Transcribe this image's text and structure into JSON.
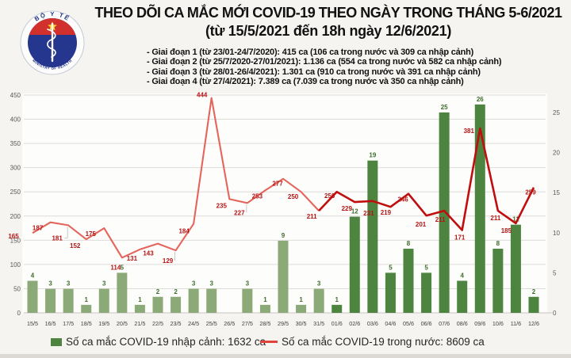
{
  "header": {
    "logo": {
      "top_text": "BỘ Y TẾ",
      "bottom_text": "MINISTRY OF HEALTH"
    },
    "title_line1": "THEO DÕI CA MẮC MỚI COVID-19 THEO NGÀY TRONG THÁNG 5-6/2021",
    "title_line2": "(từ 15/5/2021 đến 18h ngày 12/6/2021)",
    "bullets": [
      "- Giai đoạn 1 (từ 23/01-24/7/2020): 415 ca (106 ca trong nước và 309 ca nhập cảnh)",
      "- Giai đoạn 2 (từ 25/7/2020-27/01/2021): 1.136 ca (554 ca trong nước và 582 ca nhập cảnh)",
      "- Giai đoạn 3 (từ 28/01-26/4/2021): 1.301 ca (910 ca trong nước và 391 ca nhập cảnh)",
      "- Giai đoạn 4 (từ 27/4/2021): 7.389 ca (7.039 ca trong nước và 350 ca nhập cảnh)"
    ]
  },
  "chart_data": {
    "type": "bar",
    "combo": "bar+line",
    "categories": [
      "15/5",
      "16/5",
      "17/5",
      "18/5",
      "19/5",
      "20/5",
      "21/5",
      "22/5",
      "23/5",
      "24/5",
      "25/5",
      "26/5",
      "27/5",
      "28/5",
      "29/5",
      "30/5",
      "31/5",
      "01/6",
      "02/6",
      "03/6",
      "04/6",
      "05/6",
      "06/6",
      "07/6",
      "08/6",
      "09/6",
      "10/6",
      "11/6",
      "12/6"
    ],
    "series": [
      {
        "name": "Số ca mắc COVID-19 nhập cảnh",
        "type": "bar",
        "axis": "right",
        "values": [
          4,
          3,
          3,
          1,
          3,
          5,
          1,
          2,
          2,
          3,
          3,
          0,
          3,
          1,
          9,
          1,
          3,
          1,
          12,
          19,
          5,
          8,
          5,
          25,
          4,
          26,
          8,
          11,
          2
        ]
      },
      {
        "name": "Số ca mắc COVID-19 trong nước",
        "type": "line",
        "axis": "left",
        "values": [
          165,
          187,
          181,
          152,
          175,
          114,
          131,
          143,
          129,
          184,
          444,
          235,
          227,
          253,
          277,
          250,
          211,
          250,
          229,
          231,
          219,
          246,
          201,
          211,
          171,
          381,
          211,
          185,
          259
        ]
      }
    ],
    "left_axis": {
      "ticks": [
        0,
        50,
        100,
        150,
        200,
        250,
        300,
        350,
        400,
        450
      ],
      "ylim": [
        0,
        450
      ]
    },
    "right_axis": {
      "ticks": [
        0,
        5,
        10,
        15,
        20,
        25
      ],
      "ylim": [
        0,
        25
      ]
    },
    "may_june_split_index": 17,
    "grid": "horizontal",
    "legend_position": "bottom",
    "colors": {
      "bar_may": "#8caa77",
      "bar_june": "#4c8440",
      "line_may": "#e4655c",
      "line_june": "#c00d0d",
      "bar_label": "#3e6d2b",
      "line_label": "#b41414",
      "axis_label": "#595959",
      "date_label": "#3f3f3f",
      "gridline": "#dedcd8",
      "baseline": "#c8c5c1",
      "plot_bg": "#fdfdfc"
    }
  },
  "legend": {
    "bar_label": "Số ca mắc COVID-19 nhập cảnh: 1632 ca",
    "line_label": "Số ca mắc COVID-19 trong nước: 8609 ca"
  },
  "logo_colors": {
    "ring": "#fcfcfc",
    "ring_edge": "#c2cad2",
    "navy": "#25368f",
    "red": "#d2302c",
    "star": "#f8d51e",
    "text": "#1b2f7e"
  }
}
